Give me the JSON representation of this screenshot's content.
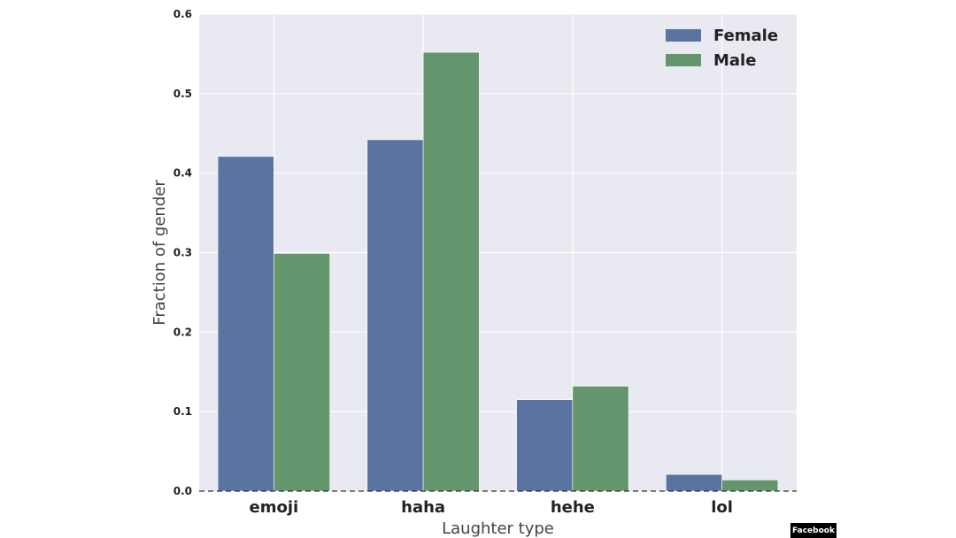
{
  "chart_data": {
    "type": "bar",
    "title": "",
    "xlabel": "Laughter type",
    "ylabel": "Fraction of gender",
    "categories": [
      "emoji",
      "haha",
      "hehe",
      "lol"
    ],
    "series": [
      {
        "name": "Female",
        "color": "#5a73a0",
        "values": [
          0.421,
          0.442,
          0.115,
          0.021
        ]
      },
      {
        "name": "Male",
        "color": "#63966d",
        "values": [
          0.299,
          0.552,
          0.132,
          0.014
        ]
      }
    ],
    "ylim": [
      0,
      0.6
    ],
    "yticks": [
      "0.0",
      "0.1",
      "0.2",
      "0.3",
      "0.4",
      "0.5",
      "0.6"
    ],
    "grid": true,
    "legend_position": "top-right",
    "plot_background": "#e9e9f1",
    "baseline_dashed": true
  },
  "credit": "Facebook"
}
